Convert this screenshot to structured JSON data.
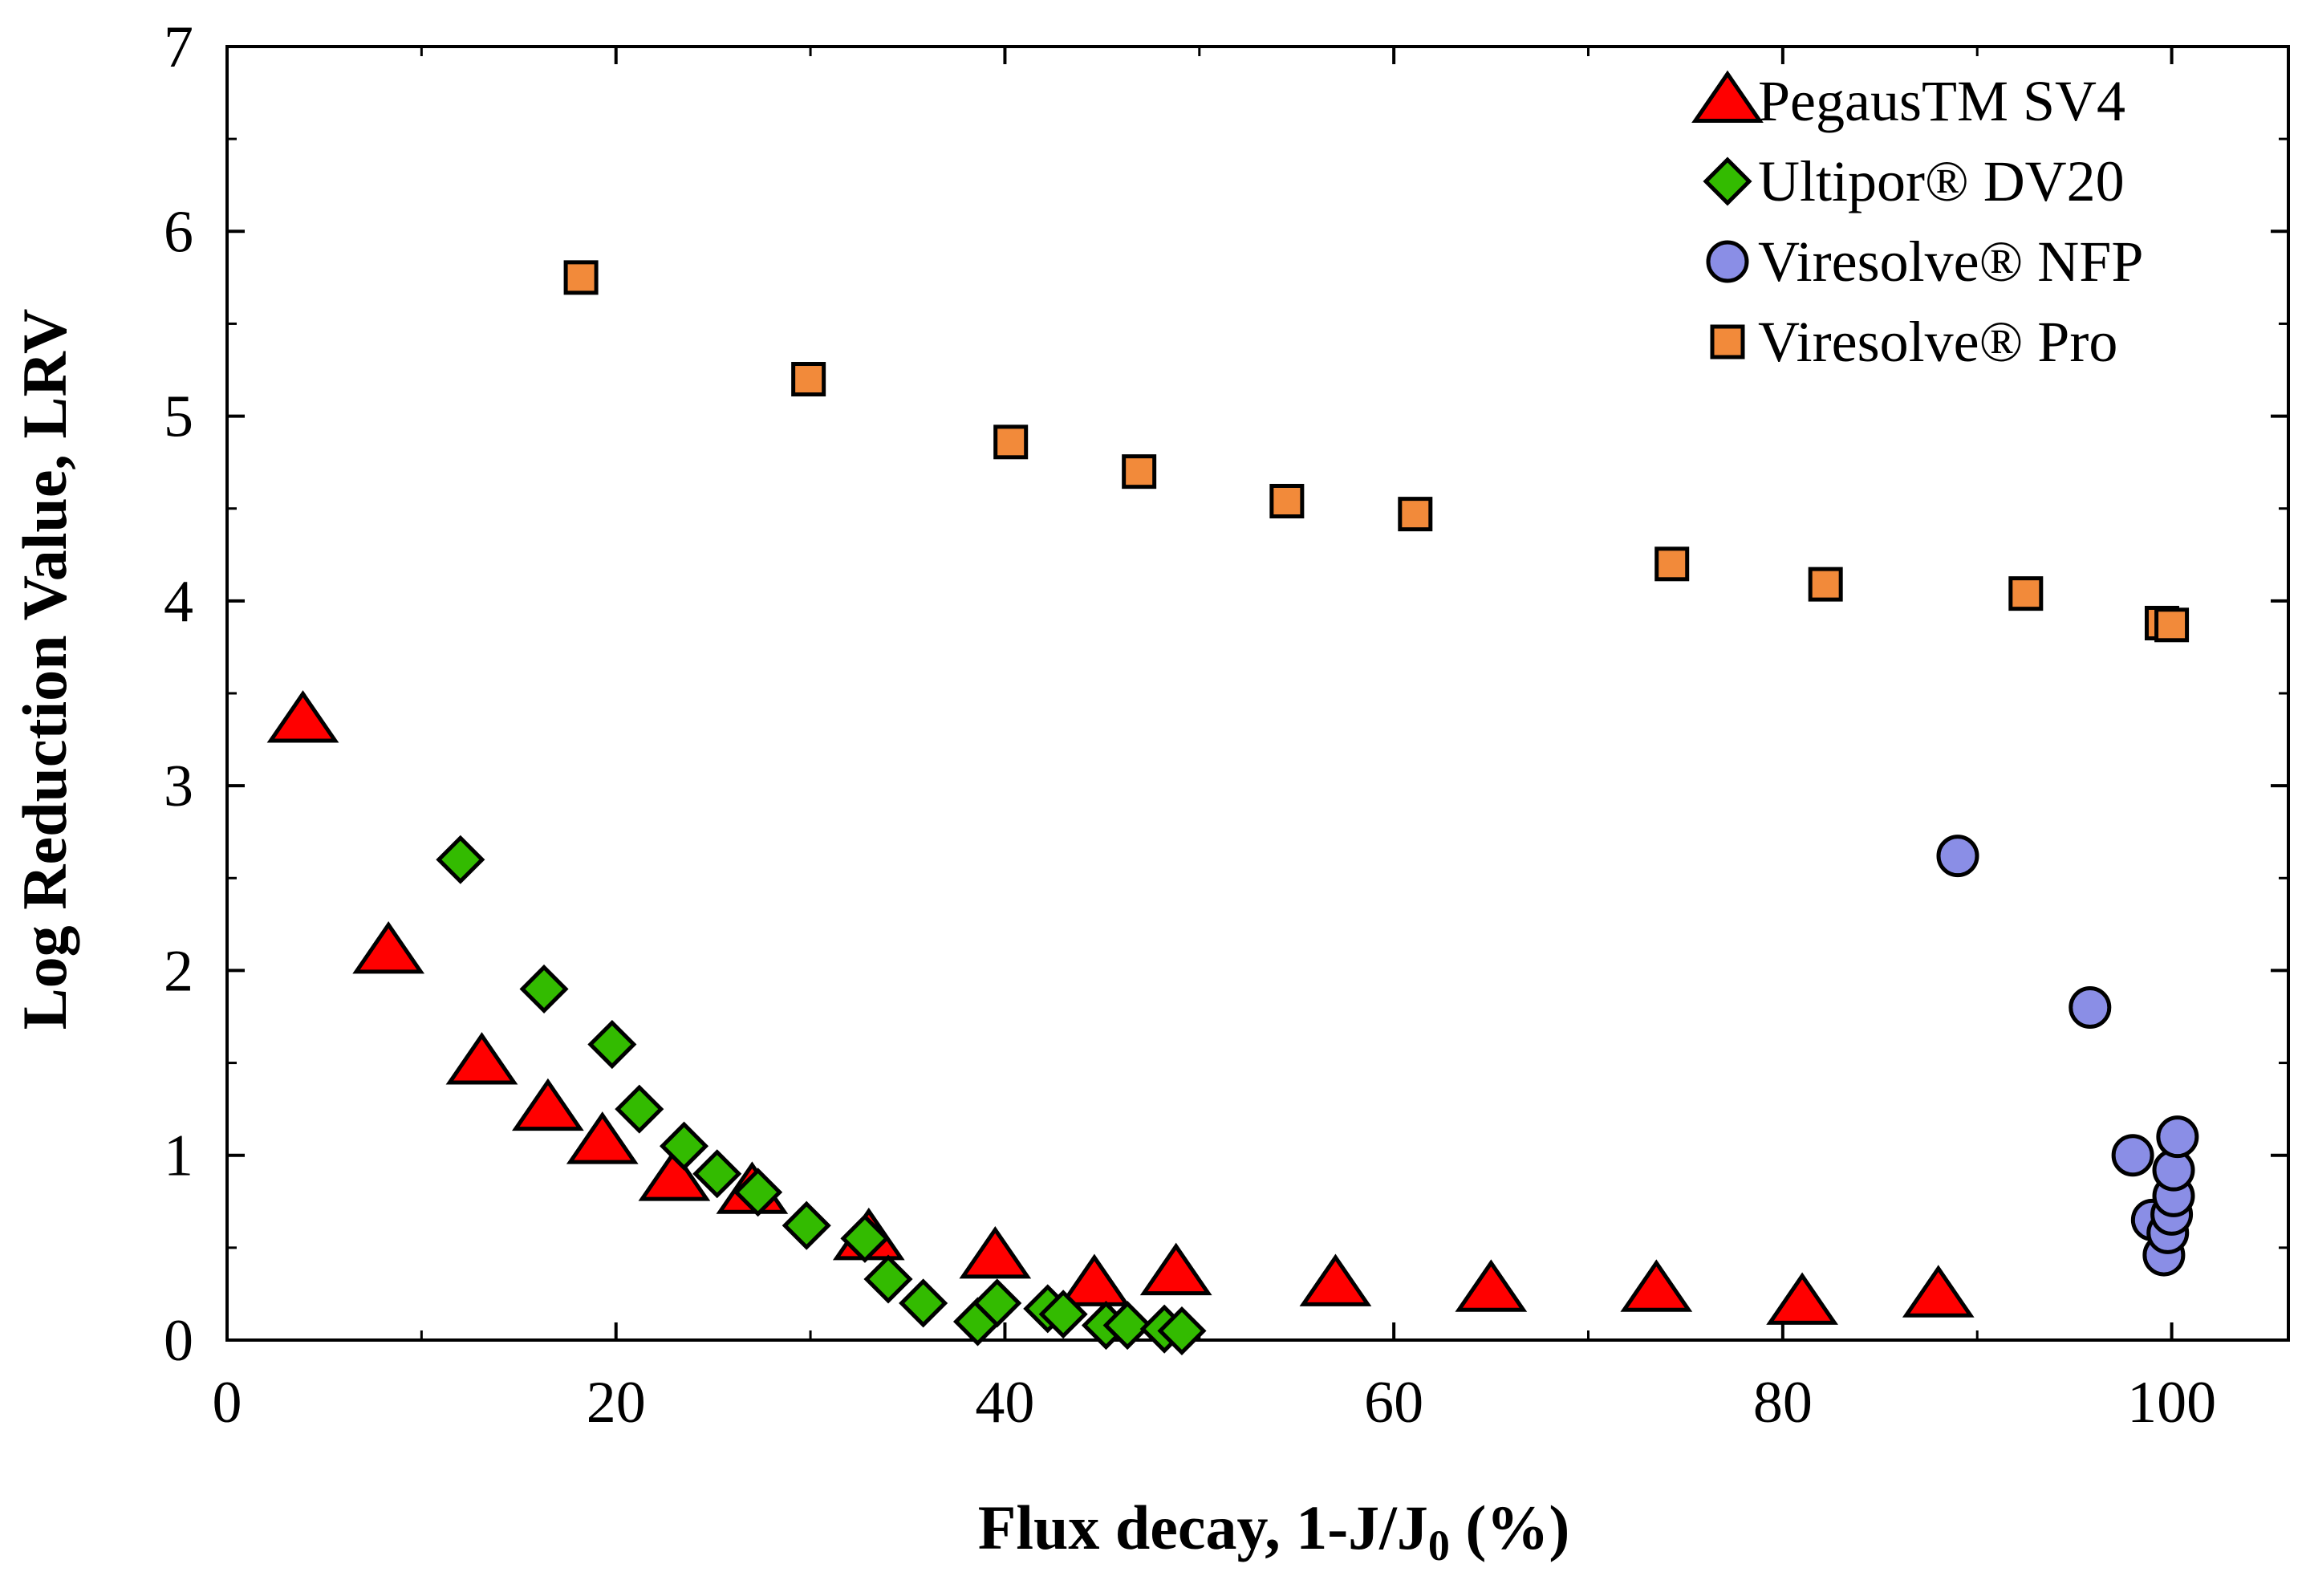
{
  "chart_data": {
    "type": "scatter",
    "title": "",
    "xlabel": "Flux decay, 1-J/J",
    "xlabel_subscript": "0",
    "xlabel_suffix": " (%)",
    "ylabel": "Log Reduction Value, LRV",
    "xlim": [
      0,
      106
    ],
    "ylim": [
      0,
      7
    ],
    "xticks": [
      0,
      20,
      40,
      60,
      80,
      100
    ],
    "yticks": [
      0,
      1,
      2,
      3,
      4,
      5,
      6,
      7
    ],
    "legend_position": "top-right",
    "series": [
      {
        "name": "PegausTM SV4",
        "marker": "triangle",
        "color": "#ff0000",
        "points": [
          [
            3.9,
            3.35
          ],
          [
            8.3,
            2.1
          ],
          [
            13.1,
            1.5
          ],
          [
            16.5,
            1.25
          ],
          [
            19.3,
            1.07
          ],
          [
            23.0,
            0.87
          ],
          [
            27.0,
            0.8
          ],
          [
            33.0,
            0.55
          ],
          [
            39.5,
            0.45
          ],
          [
            44.6,
            0.3
          ],
          [
            48.8,
            0.36
          ],
          [
            57.0,
            0.3
          ],
          [
            65.0,
            0.27
          ],
          [
            73.5,
            0.27
          ],
          [
            81.0,
            0.2
          ],
          [
            88.0,
            0.24
          ]
        ]
      },
      {
        "name": "Ultipor® DV20",
        "marker": "diamond",
        "color": "#33bb00",
        "points": [
          [
            12.0,
            2.6
          ],
          [
            16.3,
            1.9
          ],
          [
            19.8,
            1.6
          ],
          [
            21.2,
            1.25
          ],
          [
            23.5,
            1.05
          ],
          [
            25.2,
            0.9
          ],
          [
            27.3,
            0.8
          ],
          [
            29.8,
            0.62
          ],
          [
            32.8,
            0.55
          ],
          [
            34.0,
            0.33
          ],
          [
            35.8,
            0.2
          ],
          [
            38.6,
            0.1
          ],
          [
            39.6,
            0.2
          ],
          [
            42.2,
            0.17
          ],
          [
            43.0,
            0.14
          ],
          [
            45.2,
            0.08
          ],
          [
            46.3,
            0.08
          ],
          [
            48.2,
            0.06
          ],
          [
            49.1,
            0.05
          ]
        ]
      },
      {
        "name": "Viresolve® NFP",
        "marker": "circle",
        "color": "#8a8ee6",
        "points": [
          [
            89.0,
            2.62
          ],
          [
            95.8,
            1.8
          ],
          [
            98.0,
            1.0
          ],
          [
            99.0,
            0.65
          ],
          [
            99.6,
            0.46
          ],
          [
            99.8,
            0.58
          ],
          [
            100.0,
            0.68
          ],
          [
            100.1,
            0.78
          ],
          [
            100.1,
            0.92
          ],
          [
            100.3,
            1.1
          ]
        ]
      },
      {
        "name": "Viresolve® Pro",
        "marker": "square",
        "color": "#f28a3a",
        "points": [
          [
            18.2,
            5.75
          ],
          [
            29.9,
            5.2
          ],
          [
            40.3,
            4.86
          ],
          [
            46.9,
            4.7
          ],
          [
            54.5,
            4.54
          ],
          [
            61.1,
            4.47
          ],
          [
            74.3,
            4.2
          ],
          [
            82.2,
            4.09
          ],
          [
            92.5,
            4.04
          ],
          [
            99.5,
            3.88
          ],
          [
            100.0,
            3.87
          ]
        ]
      }
    ]
  }
}
